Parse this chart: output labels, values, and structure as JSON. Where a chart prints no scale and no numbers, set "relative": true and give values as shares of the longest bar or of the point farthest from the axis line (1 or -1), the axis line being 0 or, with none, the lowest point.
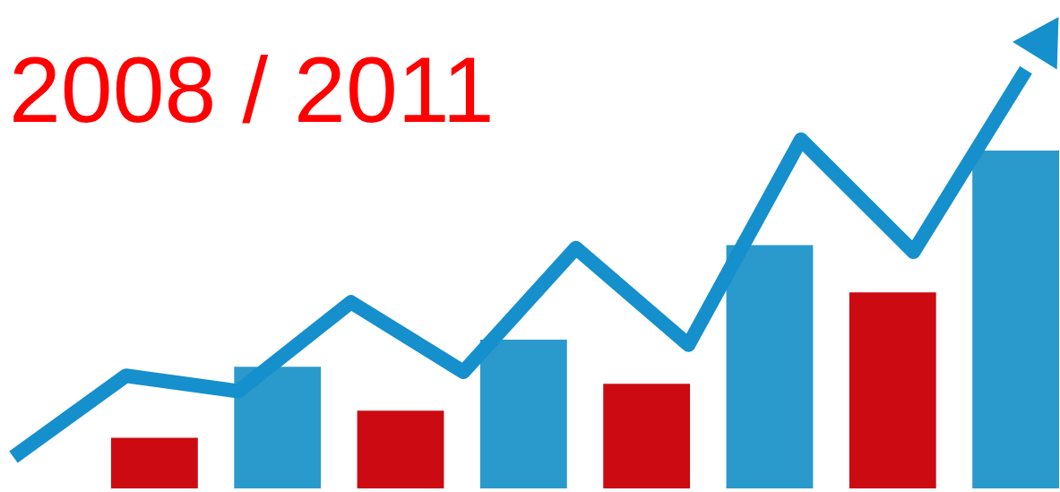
{
  "chart_data": [
    {
      "type": "bar",
      "title": "2008 / 2011",
      "relative": true,
      "categories": [
        null,
        null,
        null,
        null,
        null,
        null,
        null,
        null
      ],
      "values": [
        0.15,
        0.36,
        0.23,
        0.44,
        0.31,
        0.72,
        0.58,
        1.0
      ],
      "colors": [
        "#cc0a12",
        "#2a9acc",
        "#cc0a12",
        "#2a9acc",
        "#cc0a12",
        "#2a9acc",
        "#cc0a12",
        "#2a9acc"
      ]
    },
    {
      "type": "line",
      "relative": true,
      "categories": [
        null,
        null,
        null,
        null,
        null,
        null,
        null,
        null,
        null,
        null
      ],
      "values": [
        0,
        0.21,
        0.17,
        0.4,
        0.22,
        0.54,
        0.29,
        0.82,
        0.53,
        1.0
      ],
      "color": "#1590cc"
    }
  ]
}
